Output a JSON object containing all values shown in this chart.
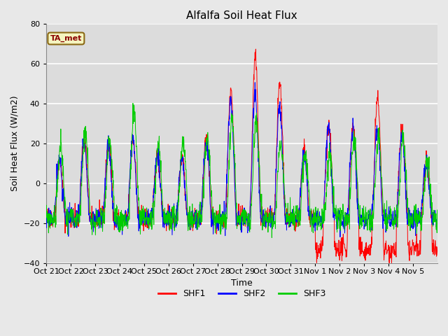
{
  "title": "Alfalfa Soil Heat Flux",
  "xlabel": "Time",
  "ylabel": "Soil Heat Flux (W/m2)",
  "ylim": [
    -40,
    80
  ],
  "legend_annotation": "TA_met",
  "series_names": [
    "SHF1",
    "SHF2",
    "SHF3"
  ],
  "series_colors": [
    "#ff0000",
    "#0000ff",
    "#00cc00"
  ],
  "bg_color": "#e8e8e8",
  "plot_bg_color": "#dcdcdc",
  "tick_labels": [
    "Oct 21",
    "Oct 22",
    "Oct 23",
    "Oct 24",
    "Oct 25",
    "Oct 26",
    "Oct 27",
    "Oct 28",
    "Oct 29",
    "Oct 30",
    "Oct 31",
    "Nov 1",
    "Nov 2",
    "Nov 3",
    "Nov 4",
    "Nov 5"
  ],
  "yticks": [
    -40,
    -20,
    0,
    20,
    40,
    60,
    80
  ],
  "n_days": 16,
  "pts_per_day": 96,
  "day_amplitudes_shf1": [
    12,
    22,
    20,
    22,
    14,
    14,
    22,
    47,
    63,
    50,
    16,
    28,
    28,
    42,
    26,
    10
  ],
  "day_amplitudes_shf2": [
    12,
    20,
    18,
    22,
    14,
    12,
    20,
    43,
    45,
    38,
    15,
    27,
    27,
    27,
    25,
    10
  ],
  "day_amplitudes_shf3": [
    18,
    27,
    22,
    35,
    18,
    21,
    22,
    30,
    32,
    20,
    15,
    14,
    22,
    22,
    22,
    10
  ],
  "night_floor": -18,
  "noise_amp": 2.5
}
